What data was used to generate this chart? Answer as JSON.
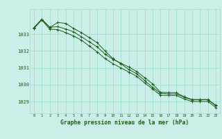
{
  "title": "Graphe pression niveau de la mer (hPa)",
  "bg_color": "#cceee8",
  "grid_color": "#99ddcc",
  "line_color": "#1a5c1a",
  "x_ticks": [
    0,
    1,
    2,
    3,
    4,
    5,
    6,
    7,
    8,
    9,
    10,
    11,
    12,
    13,
    14,
    15,
    16,
    17,
    18,
    19,
    20,
    21,
    22,
    23
  ],
  "y_ticks": [
    1029,
    1030,
    1031,
    1032,
    1033
  ],
  "ylim": [
    1028.3,
    1034.5
  ],
  "xlim": [
    -0.5,
    23.5
  ],
  "s1": [
    1033.4,
    1033.9,
    1033.4,
    1033.7,
    1033.65,
    1033.35,
    1033.1,
    1032.8,
    1032.5,
    1032.0,
    1031.55,
    1031.25,
    1030.9,
    1030.65,
    1030.25,
    1029.85,
    1029.5,
    1029.45,
    1029.45,
    1029.25,
    1029.1,
    1029.1,
    1029.1,
    1028.75
  ],
  "s2": [
    1033.35,
    1033.85,
    1033.3,
    1033.28,
    1033.1,
    1032.9,
    1032.65,
    1032.3,
    1031.95,
    1031.55,
    1031.25,
    1031.0,
    1030.75,
    1030.5,
    1030.1,
    1029.75,
    1029.38,
    1029.36,
    1029.36,
    1029.15,
    1029.0,
    1029.0,
    1029.0,
    1028.65
  ],
  "s3": [
    1033.38,
    1033.88,
    1033.42,
    1033.45,
    1033.32,
    1033.15,
    1032.85,
    1032.55,
    1032.25,
    1031.82,
    1031.5,
    1031.28,
    1031.05,
    1030.78,
    1030.42,
    1030.05,
    1029.55,
    1029.53,
    1029.53,
    1029.28,
    1029.12,
    1029.12,
    1029.12,
    1028.78
  ]
}
